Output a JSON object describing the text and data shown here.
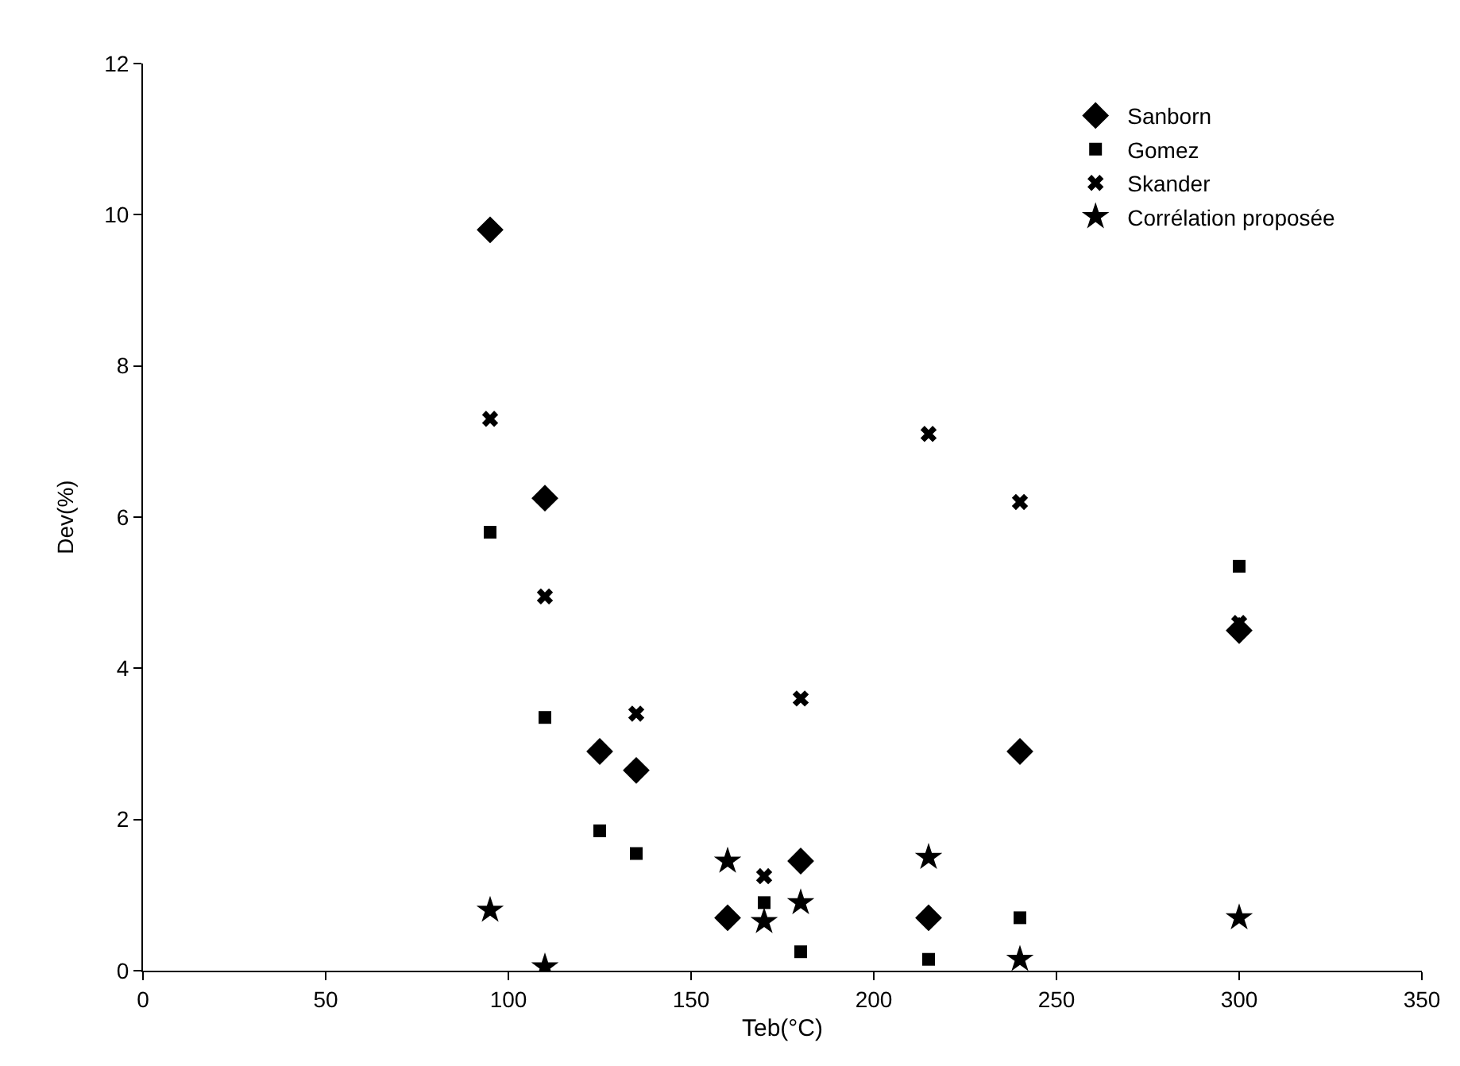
{
  "chart_data": {
    "type": "scatter",
    "xlabel": "Teb(°C)",
    "ylabel": "Dev(%)",
    "x": [
      95,
      110,
      125,
      135,
      160,
      170,
      180,
      215,
      240,
      300
    ],
    "series": [
      {
        "name": "Sanborn",
        "color": "#000000",
        "marker": "diamond",
        "values": [
          9.8,
          6.25,
          2.9,
          2.65,
          0.7,
          null,
          1.45,
          0.7,
          2.9,
          4.5
        ]
      },
      {
        "name": "Gomez",
        "color": "#000000",
        "marker": "square",
        "values": [
          5.8,
          3.35,
          1.85,
          1.55,
          null,
          0.9,
          0.25,
          0.15,
          0.7,
          5.35
        ]
      },
      {
        "name": "Skander",
        "color": "#000000",
        "marker": "cross",
        "values": [
          7.3,
          4.95,
          null,
          3.4,
          null,
          1.25,
          3.6,
          7.1,
          6.2,
          4.6
        ]
      },
      {
        "name": "Corrélation proposée",
        "color": "#000000",
        "marker": "star",
        "values": [
          0.8,
          0.05,
          null,
          null,
          1.45,
          0.65,
          0.9,
          1.5,
          0.15,
          0.7
        ]
      }
    ],
    "xlim": [
      0,
      350
    ],
    "xticks": [
      0,
      50,
      100,
      150,
      200,
      250,
      300,
      350
    ],
    "ylim": [
      0,
      12
    ],
    "yticks": [
      0,
      2,
      4,
      6,
      8,
      10,
      12
    ],
    "grid": false,
    "legend": "top right"
  }
}
